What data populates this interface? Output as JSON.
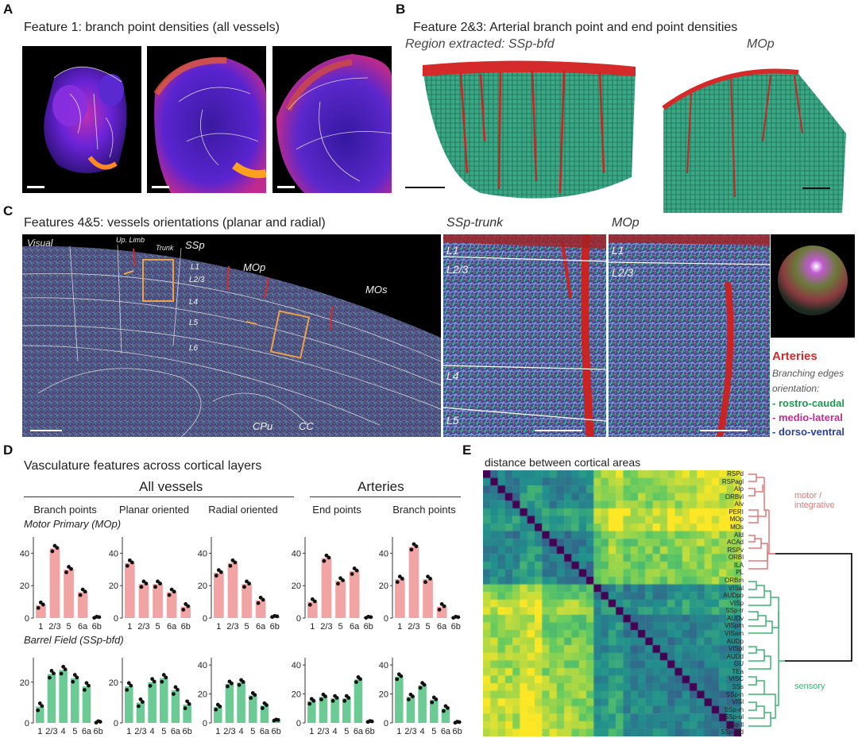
{
  "panelA": {
    "letter": "A",
    "title": "Feature 1: branch point densities (all vessels)"
  },
  "panelB": {
    "letter": "B",
    "title": "Feature 2&3: Arterial branch point and end point densities",
    "region_label": "Region extracted: SSp-bfd",
    "mop_label": "MOp"
  },
  "panelC": {
    "letter": "C",
    "title": "Features 4&5: vessels orientations (planar and radial)",
    "section_labels": {
      "visual": "Visual",
      "up_limb": "Up. Limb",
      "trunk": "Trunk",
      "ssp": "SSp",
      "mop": "MOp",
      "mos": "MOs",
      "l1": "L1",
      "l23": "L2/3",
      "l4": "L4",
      "l5": "L5",
      "l6": "L6",
      "cpu": "CPu",
      "cc": "CC"
    },
    "zoom1": {
      "title": "SSp-trunk",
      "l1": "L1",
      "l23": "L2/3",
      "l4": "L4",
      "l5": "L5"
    },
    "zoom2": {
      "title": "MOp",
      "l1": "L1",
      "l23": "L2/3"
    },
    "legend": {
      "arteries": "Arteries",
      "branching": "Branching edges",
      "orientation": "orientation:",
      "rostro": "- rostro-caudal",
      "medio": "- medio-lateral",
      "dorso": "- dorso-ventral"
    }
  },
  "panelD": {
    "letter": "D",
    "title": "Vasculature features across cortical layers",
    "group_all": "All vessels",
    "group_arteries": "Arteries",
    "row1_label": "Motor Primary (MOp)",
    "row2_label": "Barrel Field (SSp-bfd)"
  },
  "panelE": {
    "letter": "E",
    "title": "distance between cortical areas",
    "labels": [
      "RSPd",
      "RSPagl",
      "AIp",
      "ORBvl",
      "AIv",
      "PERI",
      "MOp",
      "MOs",
      "AId",
      "ACAd",
      "RSPv",
      "ORBl",
      "ILA",
      "PL",
      "ORBm",
      "VISal",
      "AUDpo",
      "VISp",
      "SSp-tr",
      "AUDv",
      "VISpm",
      "VISam",
      "AUDp",
      "VISpl",
      "AUDd",
      "GU",
      "TEa",
      "VISC",
      "SSs",
      "SSp-n",
      "VISl",
      "SSp-m",
      "SSp-ul",
      "SSp-ll",
      "SSp-bfd"
    ],
    "cluster_motor": "motor / integrative",
    "cluster_sensory": "sensory"
  },
  "colors": {
    "pink": "#f2a3a3",
    "green": "#6ccb94",
    "motor": "#e88a8a",
    "sensory": "#4fbf7f",
    "artery": "#d42a2a",
    "rostro": "#1b9a4d",
    "medio": "#c22c8f",
    "dorso": "#2a3f9a"
  },
  "chart_data": [
    {
      "type": "bar",
      "row": "Motor Primary (MOp)",
      "title": "Branch points",
      "categories": [
        "1",
        "2/3",
        "5",
        "6a",
        "6b"
      ],
      "values": [
        8,
        43,
        30,
        16,
        0.5
      ],
      "ylim": [
        0,
        50
      ],
      "yticks": [
        0,
        20,
        40
      ]
    },
    {
      "type": "bar",
      "row": "Motor Primary (MOp)",
      "title": "Planar oriented",
      "categories": [
        "1",
        "2/3",
        "5",
        "6a",
        "6b"
      ],
      "values": [
        34,
        21,
        21,
        16,
        7
      ],
      "ylim": [
        0,
        50
      ],
      "yticks": [
        0,
        20,
        40
      ]
    },
    {
      "type": "bar",
      "row": "Motor Primary (MOp)",
      "title": "Radial oriented",
      "categories": [
        "1",
        "2/3",
        "5",
        "6a",
        "6b"
      ],
      "values": [
        28,
        34,
        21,
        11,
        1
      ],
      "ylim": [
        0,
        50
      ],
      "yticks": [
        0,
        20,
        40
      ]
    },
    {
      "type": "bar",
      "row": "Motor Primary (MOp)",
      "title": "End points",
      "categories": [
        "1",
        "2/3",
        "5",
        "6a",
        "6b"
      ],
      "values": [
        10,
        37,
        23,
        29,
        0.5
      ],
      "ylim": [
        0,
        50
      ],
      "yticks": [
        0,
        20,
        40
      ]
    },
    {
      "type": "bar",
      "row": "Motor Primary (MOp)",
      "title": "Branch points",
      "categories": [
        "1",
        "2/3",
        "5",
        "6a",
        "6b"
      ],
      "values": [
        24,
        44,
        24,
        7,
        0.5
      ],
      "ylim": [
        0,
        50
      ],
      "yticks": [
        0,
        20,
        40
      ]
    },
    {
      "type": "bar",
      "row": "Barrel Field (SSp-bfd)",
      "title": "",
      "categories": [
        "1",
        "2/3",
        "4",
        "5",
        "6a",
        "6b"
      ],
      "values": [
        8,
        24,
        26,
        22,
        18,
        0.5
      ],
      "ylim": [
        0,
        32
      ],
      "yticks": [
        0,
        20
      ]
    },
    {
      "type": "bar",
      "row": "Barrel Field (SSp-bfd)",
      "title": "",
      "categories": [
        "1",
        "2/3",
        "4",
        "5",
        "6a",
        "6b"
      ],
      "values": [
        18,
        10,
        20,
        22,
        16,
        9
      ],
      "ylim": [
        0,
        32
      ],
      "yticks": [
        0,
        20
      ]
    },
    {
      "type": "bar",
      "row": "Barrel Field (SSp-bfd)",
      "title": "",
      "categories": [
        "1",
        "2/3",
        "4",
        "5",
        "6a",
        "6b"
      ],
      "values": [
        11,
        27,
        28,
        19,
        12,
        2
      ],
      "ylim": [
        0,
        45
      ],
      "yticks": [
        0,
        20,
        40
      ]
    },
    {
      "type": "bar",
      "row": "Barrel Field (SSp-bfd)",
      "title": "",
      "categories": [
        "1",
        "2/3",
        "4",
        "5",
        "6a",
        "6b"
      ],
      "values": [
        15,
        18,
        17,
        17,
        30,
        1
      ],
      "ylim": [
        0,
        45
      ],
      "yticks": [
        0,
        20,
        40
      ]
    },
    {
      "type": "bar",
      "row": "Barrel Field (SSp-bfd)",
      "title": "",
      "categories": [
        "1",
        "2/3",
        "4",
        "5",
        "6a",
        "6b"
      ],
      "values": [
        32,
        18,
        26,
        16,
        10,
        0.5
      ],
      "ylim": [
        0,
        45
      ],
      "yticks": [
        0,
        20,
        40
      ]
    }
  ]
}
